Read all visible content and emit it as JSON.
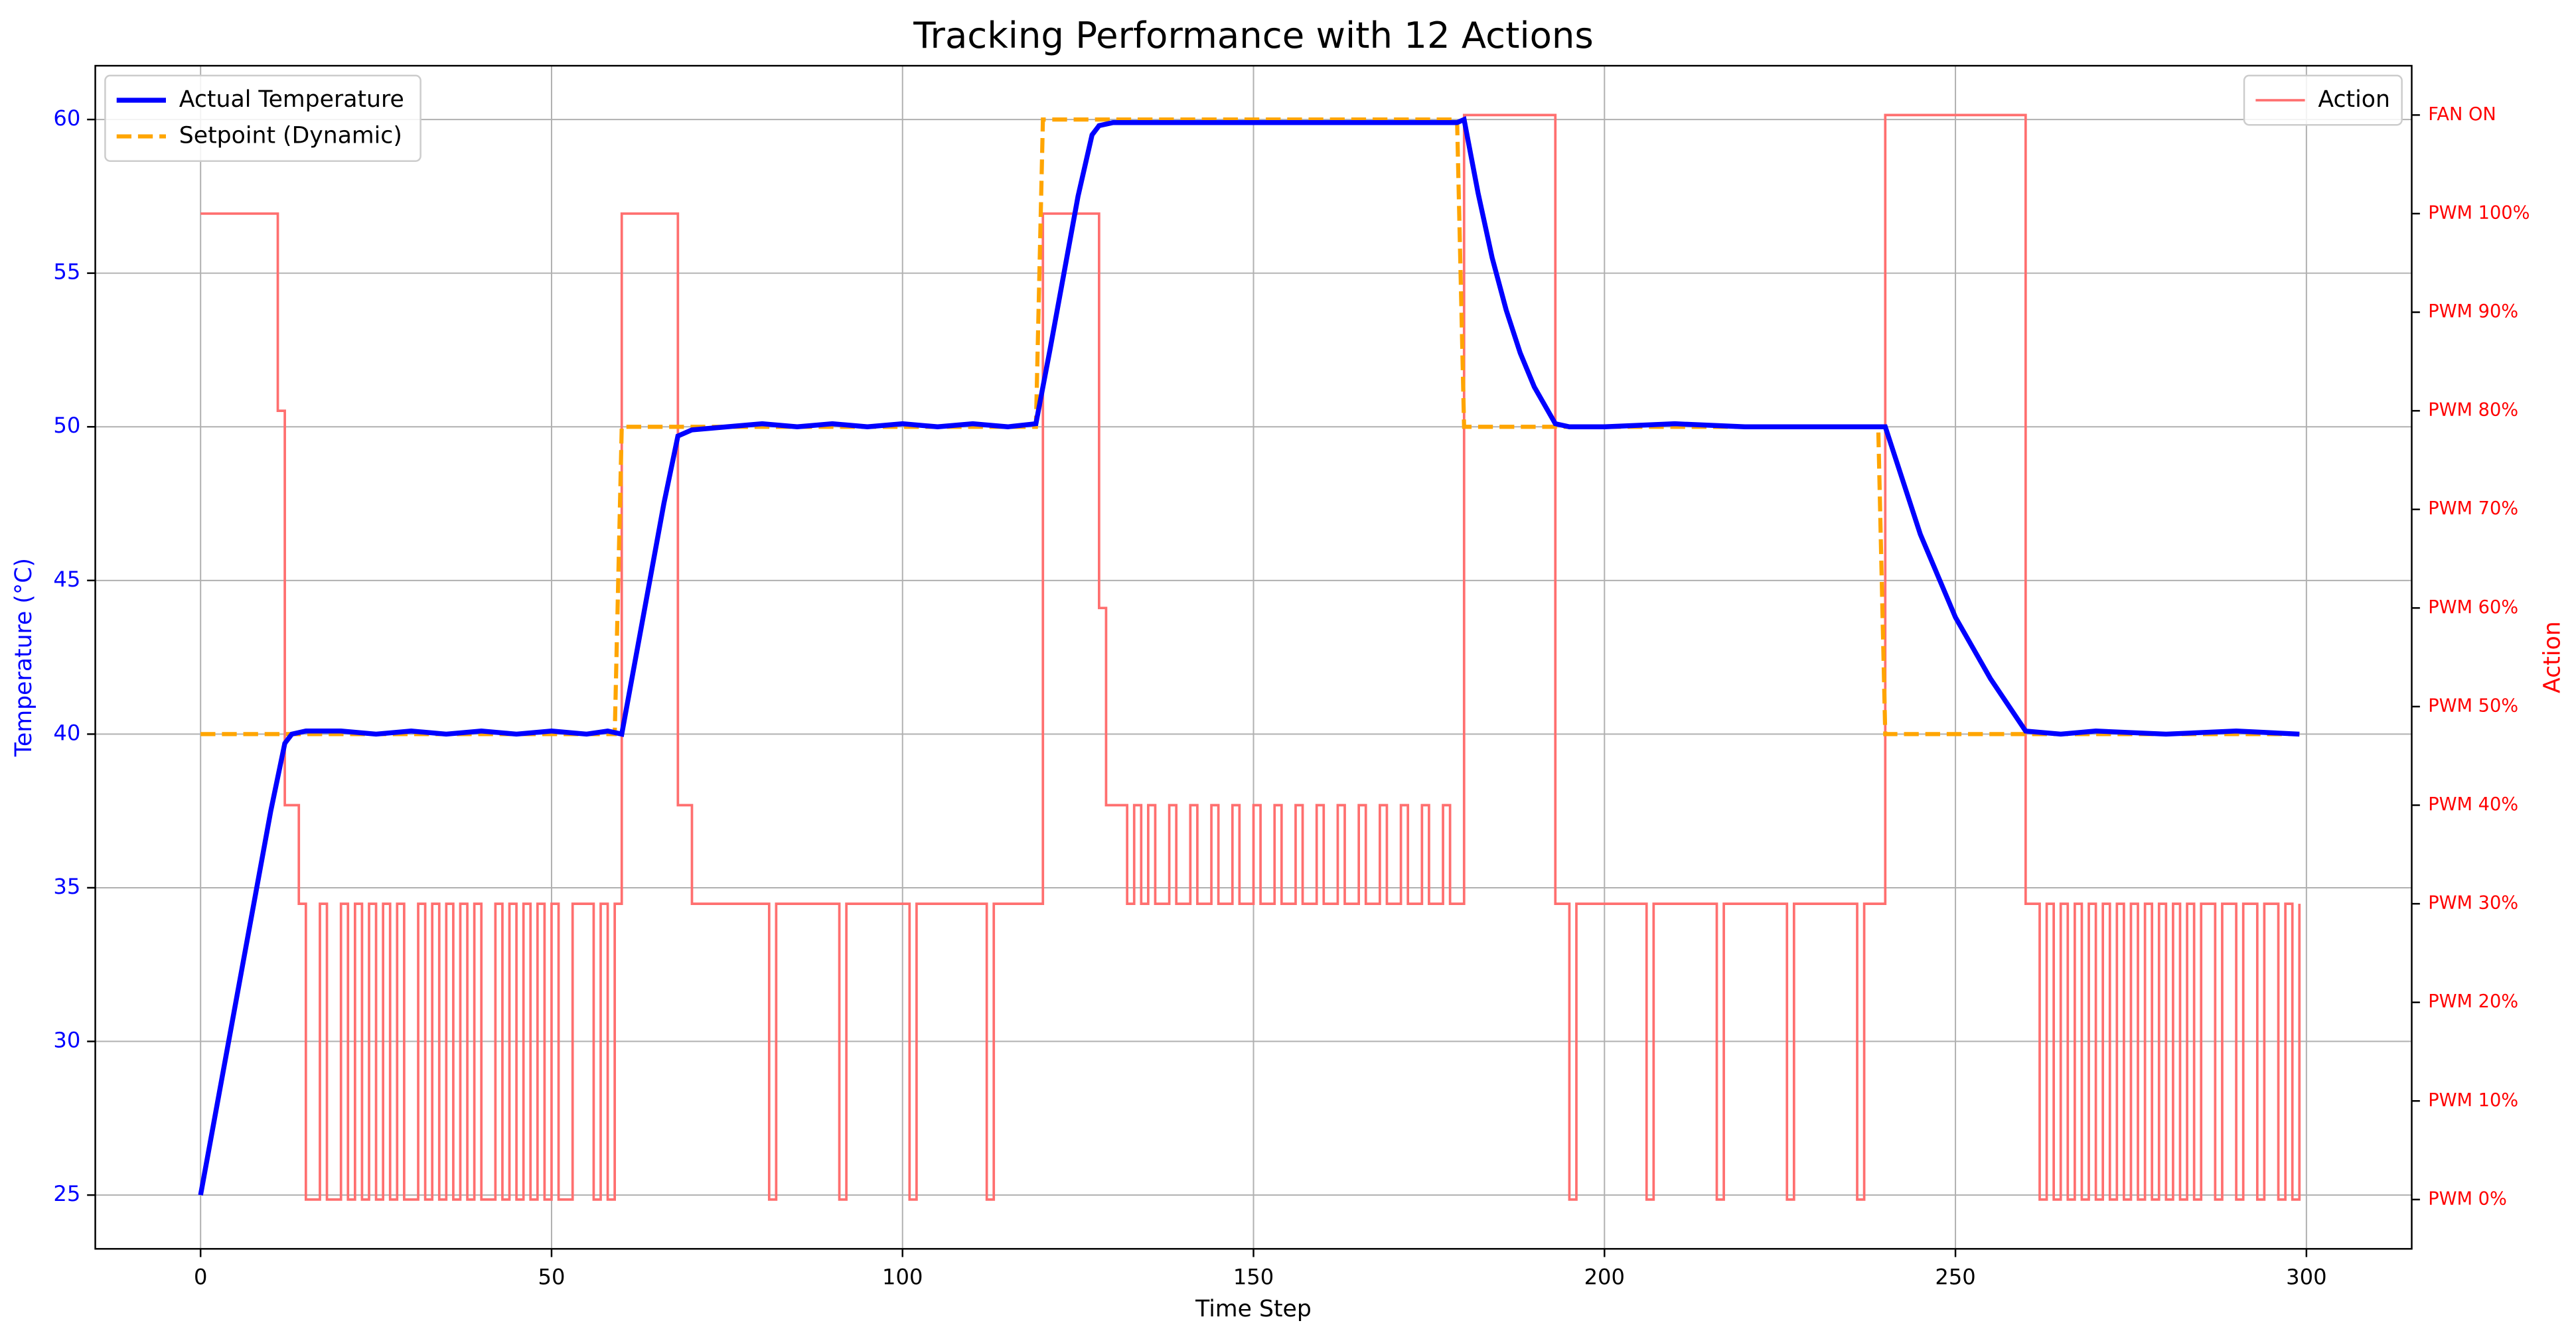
{
  "chart_data": {
    "type": "line",
    "title": "Tracking Performance with 12 Actions",
    "xlabel": "Time Step",
    "ylabel": "Temperature (°C)",
    "y2label": "Action",
    "xlim": [
      -15,
      315
    ],
    "xticks": [
      0,
      50,
      100,
      150,
      200,
      250,
      300
    ],
    "ylim": [
      23.25,
      61.75
    ],
    "yticks": [
      25,
      30,
      35,
      40,
      45,
      50,
      55,
      60
    ],
    "y2lim": [
      -0.5,
      11.5
    ],
    "y2ticks": [
      {
        "value": 0,
        "label": "PWM 0%"
      },
      {
        "value": 1,
        "label": "PWM 10%"
      },
      {
        "value": 2,
        "label": "PWM 20%"
      },
      {
        "value": 3,
        "label": "PWM 30%"
      },
      {
        "value": 4,
        "label": "PWM 40%"
      },
      {
        "value": 5,
        "label": "PWM 50%"
      },
      {
        "value": 6,
        "label": "PWM 60%"
      },
      {
        "value": 7,
        "label": "PWM 70%"
      },
      {
        "value": 8,
        "label": "PWM 80%"
      },
      {
        "value": 9,
        "label": "PWM 90%"
      },
      {
        "value": 10,
        "label": "PWM 100%"
      },
      {
        "value": 11,
        "label": "FAN ON"
      }
    ],
    "grid": true,
    "legend": "upper left",
    "y2legend": "upper right",
    "ycolor": "#0000ff",
    "y2color": "#ff0000",
    "series": [
      {
        "name": "Actual Temperature",
        "color": "#0000ff",
        "axis": "y",
        "x": [
          0,
          2,
          4,
          6,
          8,
          10,
          12,
          13,
          15,
          20,
          25,
          30,
          35,
          40,
          45,
          50,
          55,
          58,
          60,
          62,
          64,
          66,
          68,
          70,
          75,
          80,
          85,
          90,
          95,
          100,
          105,
          110,
          115,
          119,
          121,
          123,
          125,
          127,
          128,
          130,
          135,
          140,
          150,
          160,
          170,
          179,
          180,
          182,
          184,
          186,
          188,
          190,
          193,
          195,
          200,
          210,
          220,
          230,
          239,
          240,
          245,
          250,
          255,
          260,
          265,
          270,
          280,
          290,
          299
        ],
        "values": [
          25,
          27.5,
          30,
          32.5,
          35,
          37.5,
          39.7,
          40,
          40.1,
          40.1,
          40,
          40.1,
          40,
          40.1,
          40,
          40.1,
          40,
          40.1,
          40,
          42.5,
          45,
          47.5,
          49.7,
          49.9,
          50,
          50.1,
          50,
          50.1,
          50,
          50.1,
          50,
          50.1,
          50,
          50.1,
          52.5,
          55,
          57.5,
          59.5,
          59.8,
          59.9,
          59.9,
          59.9,
          59.9,
          59.9,
          59.9,
          59.9,
          60,
          57.6,
          55.5,
          53.8,
          52.4,
          51.3,
          50.1,
          50,
          50,
          50.1,
          50,
          50,
          50,
          50,
          46.5,
          43.8,
          41.8,
          40.1,
          40,
          40.1,
          40,
          40.1,
          40
        ]
      },
      {
        "name": "Setpoint (Dynamic)",
        "color": "#ffa500",
        "axis": "y",
        "linestyle": "dashed",
        "x": [
          0,
          59,
          60,
          119,
          120,
          179,
          180,
          239,
          240,
          299
        ],
        "values": [
          40,
          40,
          50,
          50,
          60,
          60,
          50,
          50,
          40,
          40
        ]
      },
      {
        "name": "Action",
        "color": "#ff6f6f",
        "axis": "y2",
        "drawstyle": "steps-post",
        "x": [
          0,
          11,
          12,
          14,
          15,
          17,
          18,
          20,
          21,
          22,
          23,
          24,
          25,
          26,
          27,
          28,
          29,
          31,
          32,
          33,
          34,
          35,
          36,
          37,
          38,
          39,
          40,
          42,
          43,
          44,
          45,
          46,
          47,
          48,
          49,
          50,
          51,
          53,
          56,
          57,
          58,
          59,
          60,
          68,
          70,
          81,
          82,
          91,
          92,
          101,
          102,
          112,
          113,
          120,
          128,
          129,
          132,
          133,
          134,
          135,
          136,
          138,
          139,
          141,
          142,
          144,
          145,
          147,
          148,
          150,
          151,
          153,
          154,
          156,
          157,
          159,
          160,
          162,
          163,
          165,
          166,
          168,
          169,
          171,
          172,
          174,
          175,
          177,
          178,
          180,
          193,
          195,
          196,
          206,
          207,
          216,
          217,
          226,
          227,
          236,
          237,
          240,
          260,
          262,
          263,
          264,
          265,
          266,
          267,
          268,
          269,
          270,
          271,
          272,
          273,
          274,
          275,
          276,
          277,
          278,
          279,
          280,
          281,
          282,
          283,
          284,
          285,
          287,
          288,
          290,
          291,
          293,
          294,
          296,
          297,
          298,
          299
        ],
        "values": [
          10,
          8,
          4,
          3,
          0,
          3,
          0,
          3,
          0,
          3,
          0,
          3,
          0,
          3,
          0,
          3,
          0,
          3,
          0,
          3,
          0,
          3,
          0,
          3,
          0,
          3,
          0,
          3,
          0,
          3,
          0,
          3,
          0,
          3,
          0,
          3,
          0,
          3,
          0,
          3,
          0,
          3,
          10,
          4,
          3,
          0,
          3,
          0,
          3,
          0,
          3,
          0,
          3,
          10,
          6,
          4,
          3,
          4,
          3,
          4,
          3,
          4,
          3,
          4,
          3,
          4,
          3,
          4,
          3,
          4,
          3,
          4,
          3,
          4,
          3,
          4,
          3,
          4,
          3,
          4,
          3,
          4,
          3,
          4,
          3,
          4,
          3,
          4,
          3,
          11,
          3,
          0,
          3,
          0,
          3,
          0,
          3,
          0,
          3,
          0,
          3,
          11,
          3,
          0,
          3,
          0,
          3,
          0,
          3,
          0,
          3,
          0,
          3,
          0,
          3,
          0,
          3,
          0,
          3,
          0,
          3,
          0,
          3,
          0,
          3,
          0,
          3,
          0,
          3,
          0,
          3,
          0,
          3,
          0,
          3,
          0,
          3
        ]
      }
    ]
  }
}
